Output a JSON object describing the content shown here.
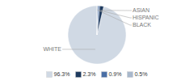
{
  "chart_data": {
    "type": "pie",
    "categories": [
      "WHITE",
      "ASIAN",
      "HISPANIC",
      "BLACK"
    ],
    "values": [
      96.3,
      2.3,
      0.9,
      0.5
    ],
    "value_labels": [
      "96.3%",
      "2.3%",
      "0.9%",
      "0.5%"
    ],
    "colors": [
      "#d0d9e4",
      "#1e3a5f",
      "#4a6fa5",
      "#a8b8cc"
    ],
    "legend": "bottom"
  }
}
